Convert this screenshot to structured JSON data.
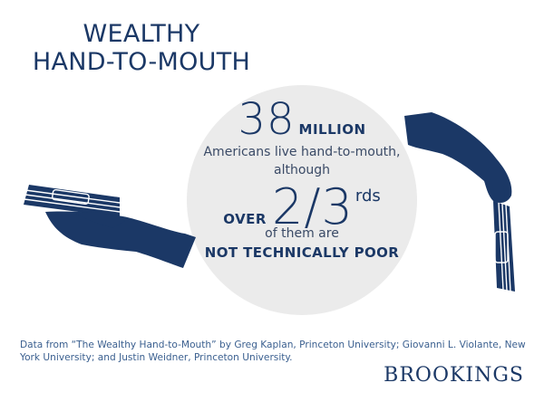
{
  "title": {
    "line1": "WEALTHY",
    "line2": "HAND-TO-MOUTH"
  },
  "stat": {
    "number": "38",
    "unit": "MILLION",
    "line1": "Americans live hand-to-mouth,",
    "line2": "although",
    "over_label": "OVER",
    "fraction": "2/3",
    "fraction_suffix": "rds",
    "line3": "of them are",
    "emphasis": "NOT TECHNICALLY POOR"
  },
  "source": "Data from “The Wealthy Hand-to-Mouth” by Greg Kaplan, Princeton University; Giovanni L. Violante, New York University; and Justin Weidner, Princeton University.",
  "logo": "BROOKINGS",
  "colors": {
    "navy": "#1b3866",
    "circle": "#ebebeb",
    "white": "#ffffff"
  },
  "icons": [
    "hand-holding-cash-icon",
    "hand-dropping-cash-icon"
  ]
}
